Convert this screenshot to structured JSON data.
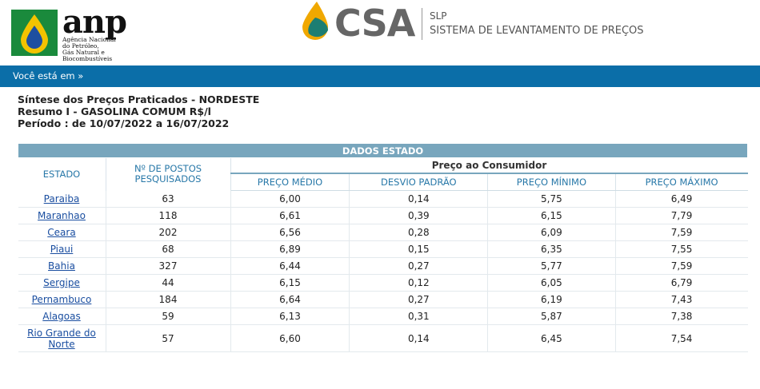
{
  "header": {
    "anp_logo_text": "anp",
    "anp_subtitle": "Agência Nacional\ndo Petróleo,\nGás Natural e Biocombustíveis",
    "csa_logo_text": "CSA",
    "system_code": "SLP",
    "system_name": "SISTEMA DE LEVANTAMENTO DE PREÇOS",
    "colors": {
      "nav": "#0b6ea8",
      "table_banner": "#78a6bd",
      "header_text": "#2878a8"
    }
  },
  "nav": {
    "breadcrumb": "Você está em »"
  },
  "report": {
    "title": "Síntese dos Preços Praticados - NORDESTE",
    "subtitle": "Resumo I - GASOLINA COMUM R$/l",
    "period": "Período : de 10/07/2022 a 16/07/2022"
  },
  "table": {
    "banner": "DADOS ESTADO",
    "col_estado": "ESTADO",
    "col_postos": "Nº DE POSTOS PESQUISADOS",
    "group_consumidor": "Preço ao Consumidor",
    "col_medio": "PREÇO MÉDIO",
    "col_desvio": "DESVIO PADRÃO",
    "col_minimo": "PREÇO MÍNIMO",
    "col_maximo": "PREÇO MÁXIMO",
    "rows": [
      {
        "estado": "Paraiba",
        "postos": "63",
        "medio": "6,00",
        "desvio": "0,14",
        "minimo": "5,75",
        "maximo": "6,49"
      },
      {
        "estado": "Maranhao",
        "postos": "118",
        "medio": "6,61",
        "desvio": "0,39",
        "minimo": "6,15",
        "maximo": "7,79"
      },
      {
        "estado": "Ceara",
        "postos": "202",
        "medio": "6,56",
        "desvio": "0,28",
        "minimo": "6,09",
        "maximo": "7,59"
      },
      {
        "estado": "Piaui",
        "postos": "68",
        "medio": "6,89",
        "desvio": "0,15",
        "minimo": "6,35",
        "maximo": "7,55"
      },
      {
        "estado": "Bahia",
        "postos": "327",
        "medio": "6,44",
        "desvio": "0,27",
        "minimo": "5,77",
        "maximo": "7,59"
      },
      {
        "estado": "Sergipe",
        "postos": "44",
        "medio": "6,15",
        "desvio": "0,12",
        "minimo": "6,05",
        "maximo": "6,79"
      },
      {
        "estado": "Pernambuco",
        "postos": "184",
        "medio": "6,64",
        "desvio": "0,27",
        "minimo": "6,19",
        "maximo": "7,43"
      },
      {
        "estado": "Alagoas",
        "postos": "59",
        "medio": "6,13",
        "desvio": "0,31",
        "minimo": "5,87",
        "maximo": "7,38"
      },
      {
        "estado": "Rio Grande do Norte",
        "postos": "57",
        "medio": "6,60",
        "desvio": "0,14",
        "minimo": "6,45",
        "maximo": "7,54"
      }
    ]
  }
}
